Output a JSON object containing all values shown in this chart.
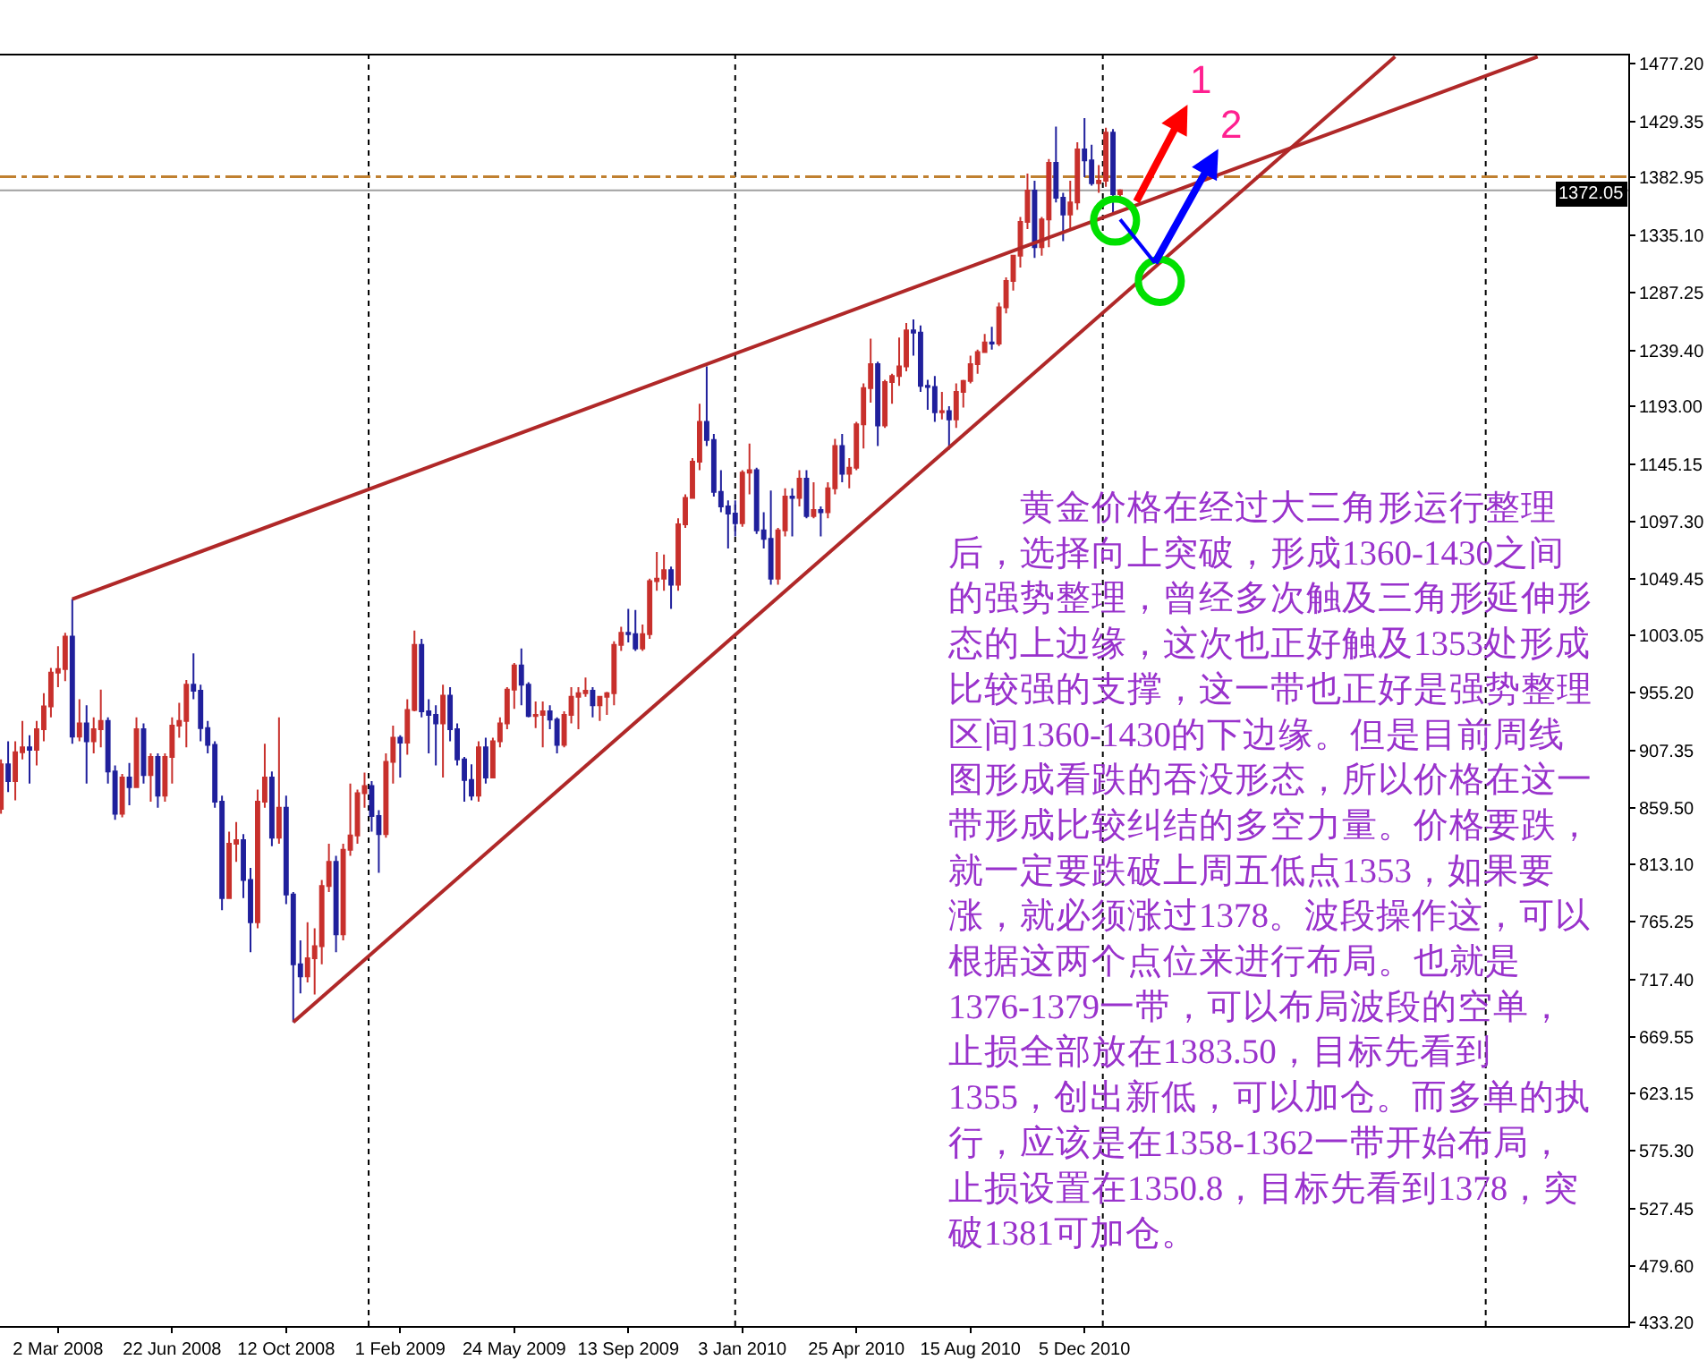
{
  "chart_data": {
    "type": "candlestick",
    "x": [
      "2008-01-06",
      "2008-01-13",
      "2008-01-20",
      "2008-01-27",
      "2008-02-03",
      "2008-02-10",
      "2008-02-17",
      "2008-02-24",
      "2008-03-02",
      "2008-03-09",
      "2008-03-16",
      "2008-03-23",
      "2008-03-30",
      "2008-04-06",
      "2008-04-13",
      "2008-04-20",
      "2008-04-27",
      "2008-05-04",
      "2008-05-11",
      "2008-05-18",
      "2008-05-25",
      "2008-06-01",
      "2008-06-08",
      "2008-06-15",
      "2008-06-22",
      "2008-06-29",
      "2008-07-06",
      "2008-07-13",
      "2008-07-20",
      "2008-07-27",
      "2008-08-03",
      "2008-08-10",
      "2008-08-17",
      "2008-08-24",
      "2008-08-31",
      "2008-09-07",
      "2008-09-14",
      "2008-09-21",
      "2008-09-28",
      "2008-10-05",
      "2008-10-12",
      "2008-10-19",
      "2008-10-26",
      "2008-11-02",
      "2008-11-09",
      "2008-11-16",
      "2008-11-23",
      "2008-11-30",
      "2008-12-07",
      "2008-12-14",
      "2008-12-21",
      "2008-12-28",
      "2009-01-04",
      "2009-01-11",
      "2009-01-18",
      "2009-01-25",
      "2009-02-01",
      "2009-02-08",
      "2009-02-15",
      "2009-02-22",
      "2009-03-01",
      "2009-03-08",
      "2009-03-15",
      "2009-03-22",
      "2009-03-29",
      "2009-04-05",
      "2009-04-12",
      "2009-04-19",
      "2009-04-26",
      "2009-05-03",
      "2009-05-10",
      "2009-05-17",
      "2009-05-24",
      "2009-05-31",
      "2009-06-07",
      "2009-06-14",
      "2009-06-21",
      "2009-06-28",
      "2009-07-05",
      "2009-07-12",
      "2009-07-19",
      "2009-07-26",
      "2009-08-02",
      "2009-08-09",
      "2009-08-16",
      "2009-08-23",
      "2009-08-30",
      "2009-09-06",
      "2009-09-13",
      "2009-09-20",
      "2009-09-27",
      "2009-10-04",
      "2009-10-11",
      "2009-10-18",
      "2009-10-25",
      "2009-11-01",
      "2009-11-08",
      "2009-11-15",
      "2009-11-22",
      "2009-11-29",
      "2009-12-06",
      "2009-12-13",
      "2009-12-20",
      "2009-12-27",
      "2010-01-03",
      "2010-01-10",
      "2010-01-17",
      "2010-01-24",
      "2010-01-31",
      "2010-02-07",
      "2010-02-14",
      "2010-02-21",
      "2010-02-28",
      "2010-03-07",
      "2010-03-14",
      "2010-03-21",
      "2010-03-28",
      "2010-04-04",
      "2010-04-11",
      "2010-04-18",
      "2010-04-25",
      "2010-05-02",
      "2010-05-09",
      "2010-05-16",
      "2010-05-23",
      "2010-05-30",
      "2010-06-06",
      "2010-06-13",
      "2010-06-20",
      "2010-06-27",
      "2010-07-04",
      "2010-07-11",
      "2010-07-18",
      "2010-07-25",
      "2010-08-01",
      "2010-08-08",
      "2010-08-15",
      "2010-08-22",
      "2010-08-29",
      "2010-09-05",
      "2010-09-12",
      "2010-09-19",
      "2010-09-26",
      "2010-10-03",
      "2010-10-10",
      "2010-10-17",
      "2010-10-24",
      "2010-10-31",
      "2010-11-07",
      "2010-11-14",
      "2010-11-21",
      "2010-11-28",
      "2010-12-05",
      "2010-12-12",
      "2010-12-19",
      "2010-12-26",
      "2011-01-02",
      "2011-01-09"
    ],
    "ohlc": [
      [
        859,
        900,
        855,
        896
      ],
      [
        896,
        915,
        873,
        882
      ],
      [
        882,
        915,
        866,
        906
      ],
      [
        906,
        932,
        900,
        910
      ],
      [
        910,
        920,
        880,
        908
      ],
      [
        908,
        932,
        895,
        925
      ],
      [
        925,
        955,
        915,
        944
      ],
      [
        944,
        976,
        935,
        972
      ],
      [
        972,
        994,
        960,
        975
      ],
      [
        975,
        1005,
        965,
        1002
      ],
      [
        1002,
        1033,
        913,
        919
      ],
      [
        919,
        950,
        915,
        930
      ],
      [
        930,
        945,
        880,
        915
      ],
      [
        915,
        935,
        905,
        925
      ],
      [
        925,
        958,
        910,
        932
      ],
      [
        932,
        935,
        880,
        890
      ],
      [
        890,
        895,
        850,
        855
      ],
      [
        855,
        888,
        852,
        885
      ],
      [
        885,
        897,
        862,
        877
      ],
      [
        877,
        935,
        877,
        925
      ],
      [
        925,
        930,
        880,
        887
      ],
      [
        887,
        905,
        865,
        902
      ],
      [
        902,
        905,
        860,
        870
      ],
      [
        870,
        905,
        865,
        902
      ],
      [
        902,
        935,
        880,
        928
      ],
      [
        928,
        947,
        918,
        932
      ],
      [
        932,
        966,
        910,
        962
      ],
      [
        962,
        988,
        950,
        957
      ],
      [
        957,
        962,
        915,
        926
      ],
      [
        926,
        932,
        905,
        912
      ],
      [
        912,
        915,
        860,
        865
      ],
      [
        865,
        870,
        775,
        785
      ],
      [
        785,
        840,
        785,
        830
      ],
      [
        830,
        848,
        815,
        833
      ],
      [
        833,
        838,
        785,
        800
      ],
      [
        800,
        810,
        740,
        765
      ],
      [
        765,
        875,
        760,
        865
      ],
      [
        865,
        913,
        860,
        885
      ],
      [
        885,
        890,
        828,
        835
      ],
      [
        835,
        935,
        830,
        860
      ],
      [
        860,
        870,
        780,
        788
      ],
      [
        788,
        790,
        682,
        730
      ],
      [
        730,
        750,
        706,
        720
      ],
      [
        720,
        765,
        715,
        735
      ],
      [
        735,
        760,
        705,
        745
      ],
      [
        745,
        800,
        730,
        795
      ],
      [
        795,
        830,
        790,
        815
      ],
      [
        815,
        820,
        740,
        755
      ],
      [
        755,
        830,
        750,
        825
      ],
      [
        825,
        880,
        820,
        837
      ],
      [
        837,
        875,
        830,
        872
      ],
      [
        872,
        889,
        860,
        878
      ],
      [
        878,
        882,
        840,
        853
      ],
      [
        853,
        858,
        806,
        838
      ],
      [
        838,
        905,
        835,
        898
      ],
      [
        898,
        928,
        880,
        918
      ],
      [
        918,
        920,
        885,
        914
      ],
      [
        914,
        950,
        904,
        941
      ],
      [
        941,
        1007,
        940,
        995
      ],
      [
        995,
        1000,
        935,
        940
      ],
      [
        940,
        950,
        905,
        937
      ],
      [
        937,
        945,
        895,
        930
      ],
      [
        930,
        962,
        885,
        953
      ],
      [
        953,
        960,
        915,
        925
      ],
      [
        925,
        930,
        895,
        900
      ],
      [
        900,
        902,
        865,
        883
      ],
      [
        883,
        896,
        866,
        870
      ],
      [
        870,
        915,
        865,
        910
      ],
      [
        910,
        918,
        880,
        885
      ],
      [
        885,
        918,
        885,
        915
      ],
      [
        915,
        935,
        910,
        930
      ],
      [
        930,
        960,
        925,
        958
      ],
      [
        958,
        980,
        942,
        978
      ],
      [
        978,
        992,
        945,
        962
      ],
      [
        962,
        964,
        935,
        936
      ],
      [
        936,
        948,
        926,
        937
      ],
      [
        937,
        948,
        910,
        940
      ],
      [
        940,
        945,
        925,
        933
      ],
      [
        933,
        935,
        905,
        912
      ],
      [
        912,
        940,
        910,
        937
      ],
      [
        937,
        960,
        930,
        952
      ],
      [
        952,
        960,
        925,
        955
      ],
      [
        955,
        968,
        952,
        957
      ],
      [
        957,
        960,
        935,
        945
      ],
      [
        945,
        952,
        932,
        952
      ],
      [
        952,
        956,
        937,
        955
      ],
      [
        955,
        998,
        945,
        995
      ],
      [
        995,
        1010,
        990,
        1005
      ],
      [
        1005,
        1025,
        997,
        1004
      ],
      [
        1004,
        1024,
        990,
        992
      ],
      [
        992,
        1012,
        990,
        1004
      ],
      [
        1004,
        1050,
        1000,
        1048
      ],
      [
        1048,
        1072,
        1040,
        1050
      ],
      [
        1050,
        1070,
        1040,
        1057
      ],
      [
        1057,
        1060,
        1025,
        1045
      ],
      [
        1045,
        1100,
        1040,
        1095
      ],
      [
        1095,
        1120,
        1092,
        1117
      ],
      [
        1117,
        1150,
        1117,
        1147
      ],
      [
        1147,
        1195,
        1140,
        1180
      ],
      [
        1180,
        1226,
        1160,
        1165
      ],
      [
        1165,
        1170,
        1118,
        1122
      ],
      [
        1122,
        1140,
        1105,
        1110
      ],
      [
        1110,
        1115,
        1075,
        1104
      ],
      [
        1104,
        1115,
        1085,
        1096
      ],
      [
        1096,
        1140,
        1093,
        1138
      ],
      [
        1138,
        1162,
        1120,
        1140
      ],
      [
        1140,
        1142,
        1087,
        1090
      ],
      [
        1090,
        1105,
        1075,
        1083
      ],
      [
        1083,
        1123,
        1045,
        1050
      ],
      [
        1050,
        1092,
        1045,
        1090
      ],
      [
        1090,
        1125,
        1085,
        1118
      ],
      [
        1118,
        1125,
        1085,
        1117
      ],
      [
        1117,
        1140,
        1110,
        1133
      ],
      [
        1133,
        1140,
        1100,
        1102
      ],
      [
        1102,
        1130,
        1100,
        1107
      ],
      [
        1107,
        1110,
        1085,
        1105
      ],
      [
        1105,
        1130,
        1100,
        1125
      ],
      [
        1125,
        1166,
        1120,
        1160
      ],
      [
        1160,
        1170,
        1130,
        1137
      ],
      [
        1137,
        1150,
        1125,
        1142
      ],
      [
        1142,
        1180,
        1140,
        1178
      ],
      [
        1178,
        1212,
        1158,
        1208
      ],
      [
        1208,
        1249,
        1196,
        1228
      ],
      [
        1228,
        1230,
        1160,
        1177
      ],
      [
        1177,
        1215,
        1175,
        1213
      ],
      [
        1213,
        1220,
        1195,
        1218
      ],
      [
        1218,
        1250,
        1210,
        1226
      ],
      [
        1226,
        1262,
        1222,
        1256
      ],
      [
        1256,
        1265,
        1235,
        1254
      ],
      [
        1254,
        1260,
        1205,
        1210
      ],
      [
        1210,
        1215,
        1190,
        1209
      ],
      [
        1209,
        1218,
        1180,
        1188
      ],
      [
        1188,
        1205,
        1182,
        1189
      ],
      [
        1189,
        1193,
        1157,
        1182
      ],
      [
        1182,
        1212,
        1175,
        1205
      ],
      [
        1205,
        1215,
        1192,
        1214
      ],
      [
        1214,
        1235,
        1212,
        1228
      ],
      [
        1228,
        1240,
        1220,
        1238
      ],
      [
        1238,
        1253,
        1238,
        1246
      ],
      [
        1246,
        1259,
        1240,
        1245
      ],
      [
        1245,
        1279,
        1243,
        1275
      ],
      [
        1275,
        1300,
        1270,
        1297
      ],
      [
        1297,
        1318,
        1289,
        1318
      ],
      [
        1318,
        1350,
        1308,
        1346
      ],
      [
        1346,
        1386,
        1340,
        1372
      ],
      [
        1372,
        1380,
        1316,
        1325
      ],
      [
        1325,
        1350,
        1318,
        1348
      ],
      [
        1348,
        1398,
        1325,
        1395
      ],
      [
        1395,
        1425,
        1362,
        1366
      ],
      [
        1366,
        1370,
        1330,
        1352
      ],
      [
        1352,
        1380,
        1340,
        1362
      ],
      [
        1362,
        1412,
        1356,
        1406
      ],
      [
        1406,
        1432,
        1383,
        1397
      ],
      [
        1397,
        1410,
        1376,
        1378
      ],
      [
        1378,
        1393,
        1370,
        1380
      ],
      [
        1380,
        1424,
        1375,
        1420
      ],
      [
        1420,
        1423,
        1353,
        1369
      ],
      [
        1369,
        1373,
        1366,
        1372.05
      ]
    ],
    "colors": [
      "#c8302c",
      "#20209c",
      "#c8302c",
      "#c8302c",
      "#20209c",
      "#c8302c",
      "#c8302c",
      "#c8302c",
      "#c8302c",
      "#c8302c",
      "#20209c",
      "#c8302c",
      "#20209c",
      "#c8302c",
      "#c8302c",
      "#20209c",
      "#20209c",
      "#c8302c",
      "#20209c",
      "#c8302c",
      "#20209c",
      "#c8302c",
      "#20209c",
      "#c8302c",
      "#c8302c",
      "#c8302c",
      "#c8302c",
      "#20209c",
      "#20209c",
      "#20209c",
      "#20209c",
      "#20209c",
      "#c8302c",
      "#c8302c",
      "#20209c",
      "#20209c",
      "#c8302c",
      "#c8302c",
      "#20209c",
      "#c8302c",
      "#20209c",
      "#20209c",
      "#20209c",
      "#c8302c",
      "#c8302c",
      "#c8302c",
      "#c8302c",
      "#20209c",
      "#c8302c",
      "#c8302c",
      "#c8302c",
      "#c8302c",
      "#20209c",
      "#20209c",
      "#c8302c",
      "#c8302c",
      "#20209c",
      "#c8302c",
      "#c8302c",
      "#20209c",
      "#20209c",
      "#20209c",
      "#c8302c",
      "#20209c",
      "#20209c",
      "#20209c",
      "#20209c",
      "#c8302c",
      "#20209c",
      "#c8302c",
      "#c8302c",
      "#c8302c",
      "#c8302c",
      "#20209c",
      "#20209c",
      "#c8302c",
      "#c8302c",
      "#20209c",
      "#20209c",
      "#c8302c",
      "#c8302c",
      "#c8302c",
      "#c8302c",
      "#20209c",
      "#c8302c",
      "#c8302c",
      "#c8302c",
      "#c8302c",
      "#20209c",
      "#20209c",
      "#c8302c",
      "#c8302c",
      "#c8302c",
      "#c8302c",
      "#20209c",
      "#c8302c",
      "#c8302c",
      "#c8302c",
      "#c8302c",
      "#20209c",
      "#20209c",
      "#20209c",
      "#20209c",
      "#20209c",
      "#c8302c",
      "#c8302c",
      "#20209c",
      "#20209c",
      "#20209c",
      "#c8302c",
      "#c8302c",
      "#20209c",
      "#c8302c",
      "#20209c",
      "#c8302c",
      "#20209c",
      "#c8302c",
      "#c8302c",
      "#20209c",
      "#c8302c",
      "#c8302c",
      "#c8302c",
      "#c8302c",
      "#20209c",
      "#c8302c",
      "#c8302c",
      "#c8302c",
      "#c8302c",
      "#20209c",
      "#20209c",
      "#20209c",
      "#20209c",
      "#c8302c",
      "#20209c",
      "#c8302c",
      "#c8302c",
      "#c8302c",
      "#c8302c",
      "#c8302c",
      "#20209c",
      "#c8302c",
      "#c8302c",
      "#c8302c",
      "#c8302c",
      "#c8302c",
      "#20209c",
      "#c8302c",
      "#c8302c",
      "#20209c",
      "#20209c",
      "#c8302c",
      "#c8302c",
      "#20209c",
      "#20209c",
      "#c8302c",
      "#c8302c",
      "#20209c",
      "#c8302c"
    ],
    "xlim": [
      "2008-01-05",
      "2012-05-22"
    ],
    "xticks": [
      {
        "value": "2008-03-02",
        "label": "2 Mar 2008"
      },
      {
        "value": "2008-06-22",
        "label": "22 Jun 2008"
      },
      {
        "value": "2008-10-12",
        "label": "12 Oct 2008"
      },
      {
        "value": "2009-02-01",
        "label": "1 Feb 2009"
      },
      {
        "value": "2009-05-24",
        "label": "24 May 2009"
      },
      {
        "value": "2009-09-13",
        "label": "13 Sep 2009"
      },
      {
        "value": "2010-01-03",
        "label": "3 Jan 2010"
      },
      {
        "value": "2010-04-25",
        "label": "25 Apr 2010"
      },
      {
        "value": "2010-08-15",
        "label": "15 Aug 2010"
      },
      {
        "value": "2010-12-05",
        "label": "5 Dec 2010"
      }
    ],
    "ylim": [
      430,
      1484
    ],
    "yticks": [
      {
        "value": 1477.2,
        "label": "1477.20"
      },
      1429.35,
      1382.95,
      {
        "value": 1335.1,
        "label": "1335.10"
      },
      1287.25,
      {
        "value": 1239.4,
        "label": "1239.40"
      },
      {
        "value": 1193,
        "label": "1193.00"
      },
      1145.15,
      {
        "value": 1097.3,
        "label": "1097.30"
      },
      1049.45,
      1003.05,
      {
        "value": 955.2,
        "label": "955.20"
      },
      907.35,
      {
        "value": 859.5,
        "label": "859.50"
      },
      {
        "value": 813.1,
        "label": "813.10"
      },
      765.25,
      {
        "value": 717.4,
        "label": "717.40"
      },
      669.55,
      623.15,
      {
        "value": 575.3,
        "label": "575.30"
      },
      527.45,
      {
        "value": 479.6,
        "label": "479.60"
      },
      {
        "value": 433.2,
        "label": "433.20"
      }
    ],
    "series": [
      {
        "type": "line",
        "color": "#b02828",
        "x": [
          "2008-03-16",
          "2012-02-23"
        ],
        "values": [
          1033,
          1483
        ]
      },
      {
        "type": "line",
        "color": "#b02828",
        "x": [
          "2008-10-19",
          "2011-10-06"
        ],
        "values": [
          682,
          1483
        ]
      },
      {
        "type": "scatter",
        "color": "#00e000",
        "marker": "circle",
        "x": [
          "2011-01-04",
          "2011-02-17"
        ],
        "values": [
          1347,
          1297
        ]
      },
      {
        "type": "line",
        "color": "#0000ff",
        "x": [
          "2011-01-09",
          "2011-02-12"
        ],
        "values": [
          1348,
          1312
        ]
      }
    ],
    "ref_lines": [
      {
        "axis": "x",
        "value": "2009-01-01",
        "line_style": "dotted",
        "color": "#000000"
      },
      {
        "axis": "x",
        "value": "2009-12-27",
        "line_style": "dotted",
        "color": "#000000"
      },
      {
        "axis": "x",
        "value": "2010-12-23",
        "line_style": "dotted",
        "color": "#000000"
      },
      {
        "axis": "x",
        "value": "2012-01-03",
        "line_style": "dotted",
        "color": "#000000"
      },
      {
        "axis": "y",
        "value": 1383.5,
        "line_style": "dashed",
        "color": "#c08030"
      },
      {
        "axis": "y",
        "value": 1372.05,
        "label": "1372.05",
        "color": "#a0a0a0"
      }
    ],
    "annotations": [
      "黄金价格在经过大三角形运行整理后，选择向上突破，形成1360-1430之间的强势整理，曾经多次触及三角形延伸形态的上边缘，这次也正好触及1353处形成比较强的支撑，这一带也正好是强势整理区间1360-1430的下边缘。但是目前周线图形成看跌的吞没形态，所以价格在这一带形成比较纠结的多空力量。价格要跌，就一定要跌破上周五低点1353，如果要涨，就必须涨过1378。波段操作这，可以根据这两个点位来进行布局。也就是1376-1379一带，可以布局波段的空单，止损全部放在1383.50，目标先看到1355，创出新低，可以加仓。而多单的执行，应该是在1358-1362一带开始布局，止损设置在1350.8，目标先看到1378，突破1381可加仓。",
      {
        "text": "1",
        "x": "2011-01-25",
        "y": 1363
      },
      {
        "text": "2",
        "x": "2011-02-12",
        "y": 1312
      }
    ]
  }
}
